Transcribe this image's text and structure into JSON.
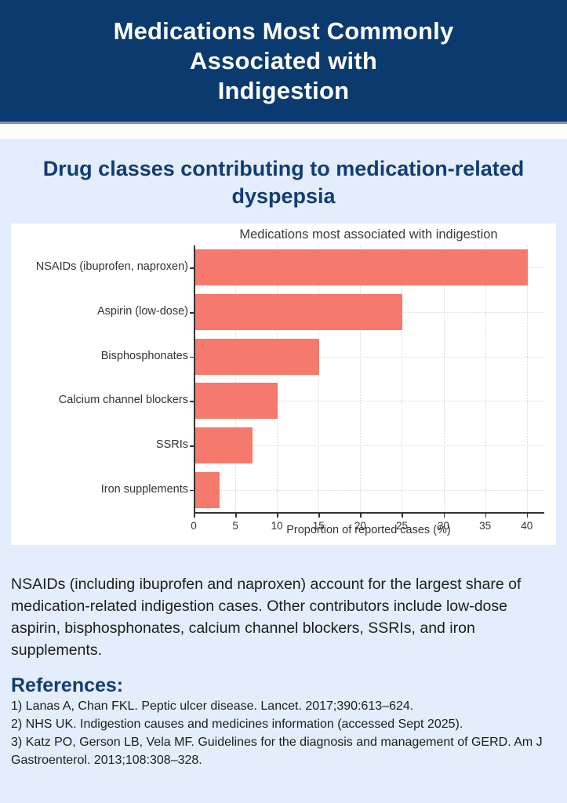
{
  "page": {
    "title_lines": [
      "Medications Most Commonly",
      "Associated with",
      "Indigestion"
    ],
    "subtitle": "Drug classes contributing to medication-related dyspepsia",
    "summary_text": "NSAIDs (including ibuprofen and naproxen) account for the largest share of medication-related indigestion cases. Other contributors include low-dose aspirin, bisphosphonates, calcium channel blockers, SSRIs, and iron supplements.",
    "references_heading": "References:",
    "references": [
      "1) Lanas A, Chan FKL. Peptic ulcer disease. Lancet. 2017;390:613–624.",
      "2) NHS UK. Indigestion causes and medicines information (accessed Sept 2025).",
      "3) Katz PO, Gerson LB, Vela MF. Guidelines for the diagnosis and management of GERD. Am J Gastroenterol. 2013;108:308–328."
    ]
  },
  "colors": {
    "header_bg": "#0b3a6e",
    "page_bg": "#e4edfb",
    "accent_navy": "#123d73",
    "bar_fill": "#f5796c",
    "chart_text": "#333333"
  },
  "chart_data": {
    "type": "bar",
    "orientation": "horizontal",
    "title": "Medications most associated with indigestion",
    "categories": [
      "NSAIDs (ibuprofen, naproxen)",
      "Aspirin (low-dose)",
      "Bisphosphonates",
      "Calcium channel blockers",
      "SSRIs",
      "Iron supplements"
    ],
    "values": [
      40,
      25,
      15,
      10,
      7,
      3
    ],
    "xlabel": "Proportion of reported cases (%)",
    "xticks": [
      0,
      5,
      10,
      15,
      20,
      25,
      30,
      35,
      40
    ],
    "xlim": [
      0,
      42
    ],
    "grid": true,
    "legend": false,
    "bar_color": "#f5796c"
  }
}
